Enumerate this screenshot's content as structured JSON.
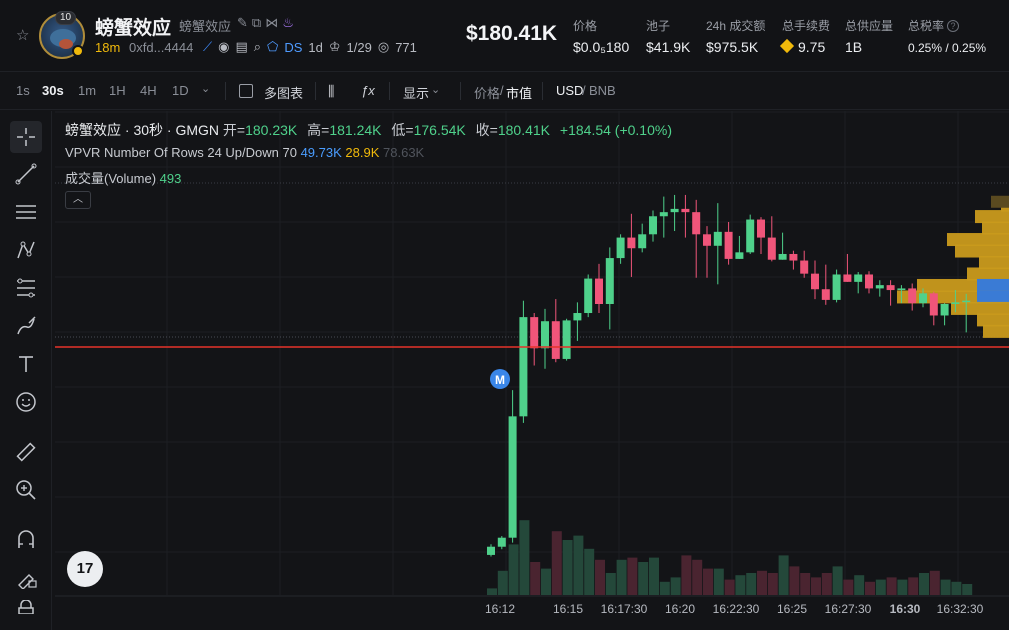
{
  "header": {
    "avatar_badge": "10",
    "token_name": "螃蟹效应",
    "token_subname": "螃蟹效应",
    "age": "18m",
    "address": "0xfd...4444",
    "ds_label": "DS",
    "ds_period": "1d",
    "holders_ratio": "1/29",
    "views": "771",
    "price_big": "$180.41K",
    "stats": [
      {
        "label": "价格",
        "value": "$0.0₅180"
      },
      {
        "label": "池子",
        "value": "$41.9K"
      },
      {
        "label": "24h 成交额",
        "value": "$975.5K"
      },
      {
        "label": "总手续费",
        "value": "9.75"
      },
      {
        "label": "总供应量",
        "value": "1B"
      },
      {
        "label": "总税率",
        "value": "0.25% / 0.25%"
      }
    ]
  },
  "toolbar": {
    "timeframes": [
      "1s",
      "30s",
      "1m",
      "1H",
      "4H",
      "1D"
    ],
    "active_timeframe": "30s",
    "multi_chart": "多图表",
    "display": "显示",
    "price_label": "价格",
    "divider": "/",
    "mcap_label": "市值",
    "currency_a": "USD",
    "currency_b": "BNB"
  },
  "legend": {
    "title": "螃蟹效应 · 30秒 · GMGN",
    "open_k": "开=",
    "open_v": "180.23K",
    "high_k": "高=",
    "high_v": "181.24K",
    "low_k": "低=",
    "low_v": "176.54K",
    "close_k": "收=",
    "close_v": "180.41K",
    "change": "+184.54 (+0.10%)",
    "vpvr_name": "VPVR",
    "vpvr_params": "Number Of Rows 24 Up/Down 70",
    "vpvr_up": "49.73K",
    "vpvr_down": "28.9K",
    "vpvr_total": "78.63K",
    "volume_label": "成交量(Volume)",
    "volume_value": "493",
    "marker": "M",
    "tv_logo": "17"
  },
  "chart_data": {
    "type": "candlestick",
    "x_ticks": [
      "16:12",
      "16:15",
      "16:17:30",
      "16:20",
      "16:22:30",
      "16:25",
      "16:27:30",
      "16:30",
      "16:32:30"
    ],
    "current_price_line": "180.41K",
    "colors": {
      "up": "#4fd18b",
      "down": "#f0557a",
      "vpvr_up": "#d7a520",
      "vpvr_alt": "#3a7bd5",
      "price_line": "#e6332a"
    },
    "candles": [
      {
        "o": 149.4,
        "h": 150.7,
        "l": 149.2,
        "c": 150.4
      },
      {
        "o": 150.4,
        "h": 151.7,
        "l": 150.1,
        "c": 151.5
      },
      {
        "o": 151.5,
        "h": 169.5,
        "l": 150.9,
        "c": 166.3
      },
      {
        "o": 166.3,
        "h": 180.4,
        "l": 165.5,
        "c": 178.4
      },
      {
        "o": 178.4,
        "h": 178.9,
        "l": 172.5,
        "c": 174.6
      },
      {
        "o": 174.6,
        "h": 179.4,
        "l": 172.1,
        "c": 177.9
      },
      {
        "o": 177.9,
        "h": 180.6,
        "l": 172.9,
        "c": 173.3
      },
      {
        "o": 173.3,
        "h": 178.2,
        "l": 173.1,
        "c": 178.0
      },
      {
        "o": 178.0,
        "h": 180.2,
        "l": 175.5,
        "c": 178.9
      },
      {
        "o": 178.9,
        "h": 183.6,
        "l": 178.4,
        "c": 183.1
      },
      {
        "o": 183.1,
        "h": 184.9,
        "l": 178.9,
        "c": 180.0
      },
      {
        "o": 180.0,
        "h": 186.9,
        "l": 176.9,
        "c": 185.6
      },
      {
        "o": 185.6,
        "h": 188.5,
        "l": 184.9,
        "c": 188.1
      },
      {
        "o": 188.1,
        "h": 191.0,
        "l": 183.3,
        "c": 186.8
      },
      {
        "o": 186.8,
        "h": 189.8,
        "l": 186.3,
        "c": 188.5
      },
      {
        "o": 188.5,
        "h": 191.4,
        "l": 187.6,
        "c": 190.7
      },
      {
        "o": 190.7,
        "h": 193.1,
        "l": 188.1,
        "c": 191.2
      },
      {
        "o": 191.2,
        "h": 193.3,
        "l": 188.9,
        "c": 191.6
      },
      {
        "o": 191.6,
        "h": 193.3,
        "l": 188.1,
        "c": 191.2
      },
      {
        "o": 191.2,
        "h": 192.7,
        "l": 183.2,
        "c": 188.5
      },
      {
        "o": 188.5,
        "h": 189.5,
        "l": 183.2,
        "c": 187.1
      },
      {
        "o": 187.1,
        "h": 192.3,
        "l": 182.4,
        "c": 188.8
      },
      {
        "o": 188.8,
        "h": 190.0,
        "l": 184.8,
        "c": 185.5
      },
      {
        "o": 185.5,
        "h": 188.3,
        "l": 185.5,
        "c": 186.3
      },
      {
        "o": 186.3,
        "h": 190.9,
        "l": 186.1,
        "c": 190.3
      },
      {
        "o": 190.3,
        "h": 190.6,
        "l": 186.1,
        "c": 188.1
      },
      {
        "o": 188.1,
        "h": 190.7,
        "l": 185.2,
        "c": 185.4
      },
      {
        "o": 185.4,
        "h": 188.7,
        "l": 185.4,
        "c": 186.1
      },
      {
        "o": 186.1,
        "h": 186.5,
        "l": 184.2,
        "c": 185.3
      },
      {
        "o": 185.3,
        "h": 186.5,
        "l": 183.2,
        "c": 183.7
      },
      {
        "o": 183.7,
        "h": 185.3,
        "l": 180.6,
        "c": 181.8
      },
      {
        "o": 181.8,
        "h": 184.8,
        "l": 179.9,
        "c": 180.5
      },
      {
        "o": 180.5,
        "h": 184.2,
        "l": 180.2,
        "c": 183.6
      },
      {
        "o": 183.6,
        "h": 186.1,
        "l": 182.7,
        "c": 182.7
      },
      {
        "o": 182.7,
        "h": 183.9,
        "l": 181.3,
        "c": 183.6
      },
      {
        "o": 183.6,
        "h": 184.0,
        "l": 181.3,
        "c": 181.9
      },
      {
        "o": 181.9,
        "h": 182.9,
        "l": 180.9,
        "c": 182.3
      },
      {
        "o": 182.3,
        "h": 182.9,
        "l": 179.8,
        "c": 181.7
      },
      {
        "o": 181.7,
        "h": 182.3,
        "l": 180.1,
        "c": 181.9
      },
      {
        "o": 181.9,
        "h": 182.5,
        "l": 179.2,
        "c": 180.1
      },
      {
        "o": 180.1,
        "h": 181.9,
        "l": 179.6,
        "c": 181.3
      },
      {
        "o": 181.3,
        "h": 181.5,
        "l": 177.4,
        "c": 178.6
      },
      {
        "o": 178.6,
        "h": 180.1,
        "l": 177.4,
        "c": 180.0
      },
      {
        "o": 180.0,
        "h": 181.7,
        "l": 179.0,
        "c": 180.2
      },
      {
        "o": 180.23,
        "h": 181.24,
        "l": 176.54,
        "c": 180.41
      }
    ],
    "volumes": [
      3,
      11,
      23,
      34,
      15,
      12,
      29,
      25,
      27,
      21,
      16,
      10,
      16,
      17,
      15,
      17,
      6,
      8,
      18,
      16,
      12,
      12,
      7,
      9,
      10,
      11,
      10,
      18,
      13,
      10,
      8,
      10,
      13,
      7,
      9,
      6,
      7,
      8,
      7,
      8,
      10,
      11,
      7,
      6,
      5
    ],
    "vpvr_bars": [
      {
        "price": 192.0,
        "up": 4,
        "down": 4
      },
      {
        "price": 190.6,
        "up": 26,
        "down": 8
      },
      {
        "price": 189.2,
        "up": 20,
        "down": 7
      },
      {
        "price": 187.8,
        "up": 38,
        "down": 24
      },
      {
        "price": 186.4,
        "up": 36,
        "down": 18
      },
      {
        "price": 185.0,
        "up": 20,
        "down": 10
      },
      {
        "price": 183.6,
        "up": 28,
        "down": 14
      },
      {
        "price": 182.2,
        "up": 62,
        "down": 30
      },
      {
        "price": 180.8,
        "up": 72,
        "down": 40
      },
      {
        "price": 179.4,
        "up": 40,
        "down": 18
      },
      {
        "price": 178.0,
        "up": 22,
        "down": 10
      },
      {
        "price": 176.6,
        "up": 18,
        "down": 8
      }
    ]
  }
}
